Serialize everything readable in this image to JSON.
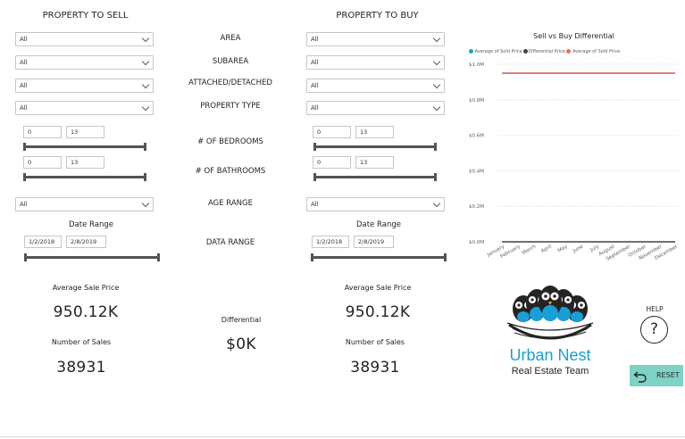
{
  "sell": {
    "title": "PROPERTY TO SELL",
    "area": "All",
    "subarea": "All",
    "attached": "All",
    "property_type": "All",
    "bed_min": "0",
    "bed_max": "13",
    "bath_min": "0",
    "bath_max": "13",
    "age_range": "All",
    "date_title": "Date Range",
    "date_start": "1/2/2018",
    "date_end": "2/8/2019",
    "avg_price_label": "Average Sale Price",
    "avg_price": "950.12K",
    "num_sales_label": "Number of Sales",
    "num_sales": "38931"
  },
  "buy": {
    "title": "PROPERTY TO BUY",
    "area": "All",
    "subarea": "All",
    "attached": "All",
    "property_type": "All",
    "bed_min": "0",
    "bed_max": "13",
    "bath_min": "0",
    "bath_max": "13",
    "age_range": "All",
    "date_title": "Date Range",
    "date_start": "1/2/2018",
    "date_end": "2/8/2019",
    "avg_price_label": "Average Sale Price",
    "avg_price": "950.12K",
    "num_sales_label": "Number of Sales",
    "num_sales": "38931"
  },
  "labels": {
    "area": "AREA",
    "subarea": "SUBAREA",
    "attached": "ATTACHED/DETACHED",
    "property_type": "PROPERTY TYPE",
    "bedrooms": "# OF BEDROOMS",
    "bathrooms": "# OF BATHROOMS",
    "age_range": "AGE RANGE",
    "data_range": "DATA RANGE"
  },
  "differential": {
    "label": "Differential",
    "value": "$0K"
  },
  "logo": {
    "line1": "Urban Nest",
    "line2": "Real Estate Team"
  },
  "help": {
    "label": "HELP",
    "icon": "question-icon"
  },
  "reset": {
    "label": "RESET",
    "icon": "undo-icon"
  },
  "colors": {
    "teal": "#01b8aa",
    "black": "#374649",
    "salmon": "#fd625e",
    "logo_blue": "#1a9ed6",
    "reset_bg": "#7fd3c6"
  },
  "chart_data": {
    "type": "line",
    "title": "Sell vs Buy Differential",
    "legend_position": "top-left",
    "categories": [
      "January",
      "February",
      "March",
      "April",
      "May",
      "June",
      "July",
      "August",
      "September",
      "October",
      "November",
      "December"
    ],
    "y_ticks": [
      "$0.0M",
      "$0.2M",
      "$0.4M",
      "$0.6M",
      "$0.8M",
      "$1.0M"
    ],
    "ylim": [
      0,
      1.0
    ],
    "grid": true,
    "series": [
      {
        "name": "Average of Sold Price",
        "color": "#01b8aa",
        "values": [
          0.95,
          0.95,
          0.95,
          0.95,
          0.95,
          0.95,
          0.95,
          0.95,
          0.95,
          0.95,
          0.95,
          0.95
        ]
      },
      {
        "name": "Differential Price",
        "color": "#374649",
        "values": [
          0,
          0,
          0,
          0,
          0,
          0,
          0,
          0,
          0,
          0,
          0,
          0
        ]
      },
      {
        "name": "Average of Sold Price",
        "color": "#fd625e",
        "values": [
          0.95,
          0.95,
          0.95,
          0.95,
          0.95,
          0.95,
          0.95,
          0.95,
          0.95,
          0.95,
          0.95,
          0.95
        ]
      }
    ]
  }
}
